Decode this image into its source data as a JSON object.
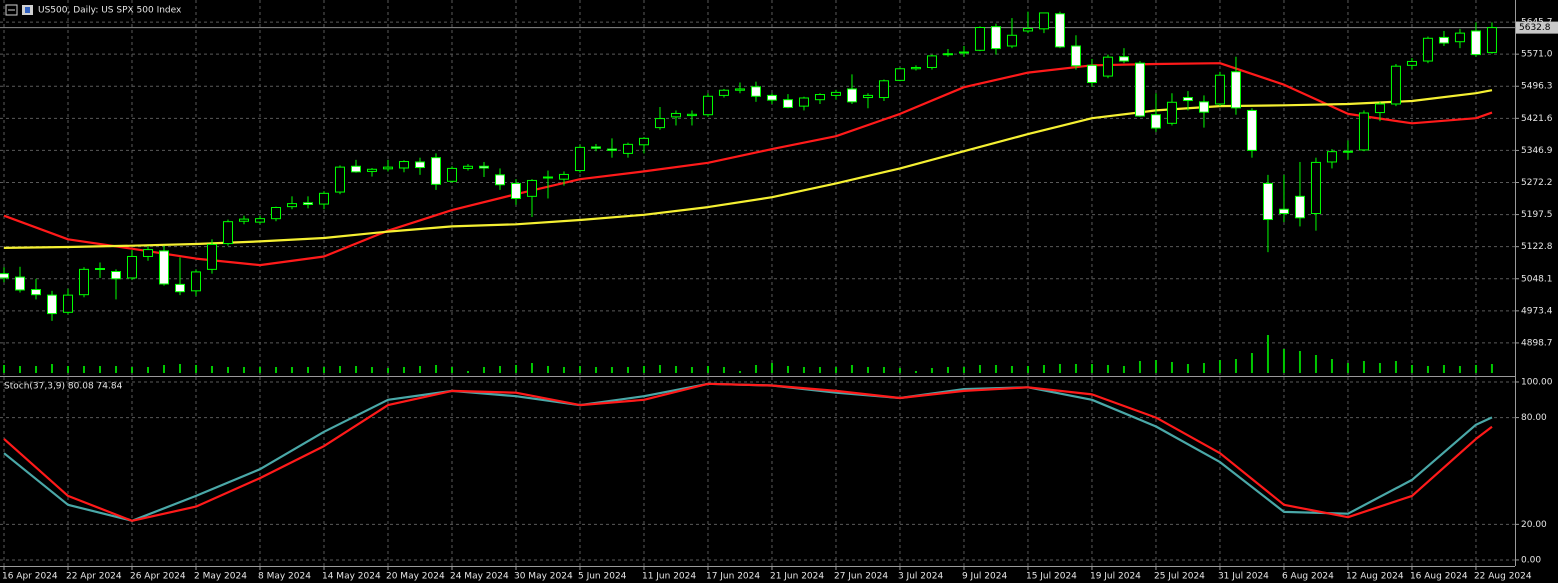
{
  "chart_data": [
    {
      "type": "candlestick",
      "title": "US500, Daily: US SPX 500 Index",
      "categories": [
        "16 Apr 2024",
        null,
        null,
        null,
        "22 Apr 2024",
        null,
        null,
        null,
        "26 Apr 2024",
        null,
        null,
        null,
        "2 May 2024",
        null,
        null,
        null,
        "8 May 2024",
        null,
        null,
        null,
        "14 May 2024",
        null,
        null,
        null,
        "20 May 2024",
        null,
        null,
        null,
        "24 May 2024",
        null,
        null,
        null,
        "30 May 2024",
        null,
        null,
        null,
        "5 Jun 2024",
        null,
        null,
        null,
        "11 Jun 2024",
        null,
        null,
        null,
        "17 Jun 2024",
        null,
        null,
        null,
        "21 Jun 2024",
        null,
        null,
        null,
        "27 Jun 2024",
        null,
        null,
        null,
        "3 Jul 2024",
        null,
        null,
        null,
        "9 Jul 2024",
        null,
        null,
        null,
        "15 Jul 2024",
        null,
        null,
        null,
        "19 Jul 2024",
        null,
        null,
        null,
        "25 Jul 2024",
        null,
        null,
        null,
        "31 Jul 2024",
        null,
        null,
        null,
        "6 Aug 2024",
        null,
        null,
        null,
        "12 Aug 2024",
        null,
        null,
        null,
        "16 Aug 2024",
        null,
        null,
        null,
        "22 Aug 2024",
        null
      ],
      "open": [
        5060,
        5052,
        5023,
        5010,
        4970,
        5011,
        5072,
        5065,
        5050,
        5100,
        5113,
        5035,
        5020,
        5070,
        5130,
        5182,
        5180,
        5188,
        5216,
        5225,
        5222,
        5250,
        5310,
        5298,
        5304,
        5306,
        5320,
        5330,
        5275,
        5305,
        5310,
        5290,
        5270,
        5240,
        5285,
        5280,
        5300,
        5355,
        5350,
        5340,
        5360,
        5400,
        5425,
        5428,
        5430,
        5475,
        5487,
        5495,
        5475,
        5465,
        5450,
        5465,
        5475,
        5490,
        5470,
        5470,
        5510,
        5537,
        5540,
        5570,
        5575,
        5580,
        5635,
        5590,
        5625,
        5630,
        5665,
        5590,
        5545,
        5520,
        5565,
        5550,
        5430,
        5410,
        5470,
        5460,
        5455,
        5530,
        5440,
        5270,
        5210,
        5240,
        5200,
        5320,
        5345,
        5348,
        5435,
        5455,
        5545,
        5555,
        5610,
        5600,
        5625,
        5575
      ],
      "high": [
        5075,
        5076,
        5048,
        5020,
        5025,
        5075,
        5086,
        5070,
        5115,
        5124,
        5125,
        5098,
        5070,
        5140,
        5186,
        5195,
        5195,
        5216,
        5240,
        5240,
        5252,
        5312,
        5325,
        5306,
        5325,
        5324,
        5330,
        5340,
        5310,
        5315,
        5320,
        5305,
        5280,
        5280,
        5300,
        5298,
        5360,
        5362,
        5375,
        5365,
        5378,
        5448,
        5440,
        5440,
        5480,
        5490,
        5505,
        5507,
        5480,
        5478,
        5472,
        5480,
        5488,
        5524,
        5480,
        5512,
        5540,
        5545,
        5570,
        5583,
        5590,
        5636,
        5642,
        5655,
        5670,
        5668,
        5670,
        5615,
        5560,
        5570,
        5585,
        5555,
        5480,
        5480,
        5485,
        5475,
        5530,
        5565,
        5445,
        5290,
        5290,
        5320,
        5330,
        5350,
        5370,
        5440,
        5460,
        5548,
        5562,
        5612,
        5625,
        5630,
        5645,
        5645
      ],
      "low": [
        5040,
        5016,
        5000,
        4950,
        4965,
        5005,
        5050,
        5000,
        5045,
        5090,
        5032,
        5010,
        5008,
        5060,
        5125,
        5175,
        5175,
        5182,
        5210,
        5212,
        5210,
        5245,
        5295,
        5286,
        5298,
        5296,
        5290,
        5255,
        5272,
        5300,
        5285,
        5255,
        5220,
        5192,
        5235,
        5265,
        5295,
        5345,
        5330,
        5330,
        5340,
        5395,
        5405,
        5405,
        5425,
        5470,
        5480,
        5460,
        5455,
        5445,
        5440,
        5455,
        5465,
        5455,
        5445,
        5462,
        5508,
        5533,
        5535,
        5565,
        5565,
        5578,
        5570,
        5585,
        5620,
        5620,
        5585,
        5535,
        5495,
        5515,
        5550,
        5425,
        5390,
        5405,
        5440,
        5400,
        5450,
        5430,
        5330,
        5110,
        5180,
        5170,
        5160,
        5305,
        5325,
        5345,
        5415,
        5450,
        5535,
        5550,
        5590,
        5585,
        5565,
        5572
      ],
      "close": [
        5050,
        5022,
        5011,
        4967,
        5010,
        5070,
        5071,
        5048,
        5100,
        5116,
        5036,
        5018,
        5064,
        5128,
        5181,
        5187,
        5188,
        5214,
        5223,
        5221,
        5247,
        5308,
        5297,
        5303,
        5308,
        5321,
        5307,
        5268,
        5305,
        5310,
        5306,
        5267,
        5235,
        5277,
        5283,
        5291,
        5354,
        5352,
        5347,
        5361,
        5375,
        5421,
        5433,
        5431,
        5473,
        5487,
        5490,
        5473,
        5464,
        5447,
        5469,
        5477,
        5482,
        5460,
        5475,
        5509,
        5537,
        5540,
        5567,
        5572,
        5576,
        5633,
        5584,
        5615,
        5631,
        5667,
        5588,
        5544,
        5505,
        5564,
        5555,
        5427,
        5399,
        5459,
        5463,
        5436,
        5522,
        5446,
        5347,
        5186,
        5200,
        5190,
        5319,
        5344,
        5344,
        5434,
        5455,
        5543,
        5554,
        5608,
        5597,
        5620,
        5570,
        5632.8
      ],
      "last_price": 5632.8,
      "up_color": "#000000",
      "down_color": "#ffffff",
      "wick_color": "#00ff00",
      "volume": {
        "color": "#00c800",
        "values": [
          8,
          7,
          7,
          9,
          7,
          7,
          7,
          7,
          6,
          6,
          8,
          9,
          8,
          7,
          6,
          6,
          6,
          6,
          6,
          6,
          6,
          7,
          7,
          6,
          5,
          6,
          7,
          8,
          6,
          2,
          6,
          7,
          8,
          10,
          7,
          6,
          7,
          6,
          6,
          6,
          7,
          8,
          7,
          6,
          7,
          6,
          2,
          8,
          10,
          7,
          6,
          6,
          6,
          8,
          6,
          6,
          5,
          2,
          5,
          6,
          6,
          8,
          8,
          7,
          7,
          8,
          9,
          9,
          9,
          8,
          7,
          12,
          13,
          11,
          9,
          10,
          13,
          14,
          20,
          38,
          24,
          22,
          18,
          14,
          10,
          12,
          10,
          12,
          8,
          7,
          8,
          7,
          8,
          9
        ]
      },
      "overlays": [
        {
          "type": "line",
          "color": "#ff1a1a",
          "x": [
            0,
            4,
            8,
            12,
            16,
            20,
            24,
            28,
            32,
            36,
            40,
            44,
            48,
            52,
            56,
            60,
            64,
            68,
            72,
            76,
            80,
            84,
            88,
            92,
            93
          ],
          "values": [
            5195,
            5140,
            5118,
            5095,
            5080,
            5100,
            5160,
            5208,
            5245,
            5280,
            5298,
            5318,
            5350,
            5380,
            5432,
            5494,
            5528,
            5545,
            5548,
            5550,
            5500,
            5432,
            5410,
            5422,
            5435
          ]
        },
        {
          "type": "line",
          "color": "#f5f032",
          "x": [
            0,
            4,
            8,
            12,
            16,
            20,
            24,
            28,
            32,
            36,
            40,
            44,
            48,
            52,
            56,
            60,
            64,
            68,
            72,
            76,
            80,
            84,
            88,
            92,
            93
          ],
          "values": [
            5120,
            5122,
            5125,
            5129,
            5135,
            5143,
            5158,
            5170,
            5175,
            5185,
            5197,
            5215,
            5238,
            5270,
            5305,
            5345,
            5385,
            5422,
            5440,
            5450,
            5452,
            5455,
            5462,
            5480,
            5487
          ]
        }
      ],
      "xlim": [
        -0.25,
        94.44
      ],
      "ylim": [
        4821.7,
        5697.1
      ],
      "yticks": [
        5645.7,
        {
          "value": 5571,
          "label": "5571.0"
        },
        5496.3,
        5421.6,
        5346.9,
        5272.2,
        5197.5,
        5122.8,
        5048.1,
        4973.4,
        4898.7
      ],
      "grid": true
    },
    {
      "type": "line",
      "title": "Stoch(37,3,9) 80.08 74.84",
      "series": [
        {
          "color": "#4aa8a8",
          "x": [
            0,
            4,
            8,
            12,
            16,
            20,
            24,
            28,
            32,
            36,
            40,
            44,
            48,
            52,
            56,
            60,
            64,
            68,
            72,
            76,
            80,
            84,
            88,
            92,
            93
          ],
          "values": [
            60,
            31,
            22,
            36,
            51,
            72,
            90,
            95,
            92,
            87,
            92,
            99,
            98,
            94,
            91,
            96,
            97,
            90,
            75,
            55,
            27,
            26,
            45,
            76,
            80.08
          ]
        },
        {
          "color": "#ff1a1a",
          "x": [
            0,
            4,
            8,
            12,
            16,
            20,
            24,
            28,
            32,
            36,
            40,
            44,
            48,
            52,
            56,
            60,
            64,
            68,
            72,
            76,
            80,
            84,
            88,
            92,
            93
          ],
          "values": [
            68,
            36,
            22,
            30,
            46,
            64,
            87,
            95,
            94,
            87,
            90,
            99,
            98,
            95,
            91,
            95,
            97,
            93,
            80,
            60,
            31,
            24,
            36,
            68,
            74.84
          ]
        }
      ],
      "xlim": [
        -0.25,
        94.44
      ],
      "ylim": [
        -3.4,
        102.8
      ],
      "yticks": [
        {
          "value": 100,
          "label": "100.00"
        },
        {
          "value": 80,
          "label": "80.00"
        },
        {
          "value": 20,
          "label": "20.00"
        },
        {
          "value": 0,
          "label": "0.00"
        }
      ],
      "grid": true
    }
  ]
}
